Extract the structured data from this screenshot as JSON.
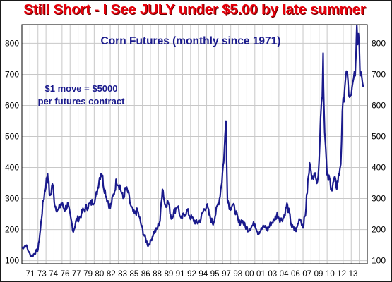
{
  "chart_data": {
    "type": "line",
    "title": "Corn Futures (monthly since 1971)",
    "headline": "Still Short - I See JULY under $5.00 by late summer",
    "annotation": [
      "$1 move = $5000",
      "per futures contract"
    ],
    "xlabel": "",
    "ylabel": "",
    "ylim": [
      90,
      860
    ],
    "xlim": [
      1971,
      2014
    ],
    "y_ticks": [
      100,
      200,
      300,
      400,
      500,
      600,
      700,
      800
    ],
    "x_tick_labels": [
      "71",
      "73",
      "74",
      "76",
      "77",
      "79",
      "80",
      "82",
      "83",
      "85",
      "86",
      "88",
      "89",
      "91",
      "92",
      "94",
      "95",
      "97",
      "98",
      "00",
      "01",
      "03",
      "04",
      "06",
      "07",
      "09",
      "10",
      "12",
      "13"
    ],
    "grid": true,
    "line_color": "#1a1a8c",
    "series": [
      {
        "x": [
          1971.0,
          1971.5,
          1972.0,
          1972.3,
          1972.6,
          1973.0,
          1973.3,
          1973.6,
          1973.9,
          1974.2,
          1974.5,
          1974.8,
          1975.1,
          1975.5,
          1975.9,
          1976.3,
          1976.7,
          1977.0,
          1977.4,
          1977.8,
          1978.2,
          1978.6,
          1979.0,
          1979.4,
          1979.8,
          1980.2,
          1980.6,
          1980.9,
          1981.2,
          1981.6,
          1982.0,
          1982.4,
          1982.8,
          1983.2,
          1983.6,
          1983.9,
          1984.2,
          1984.6,
          1985.0,
          1985.4,
          1985.8,
          1986.1,
          1986.4,
          1986.7,
          1987.0,
          1987.4,
          1987.8,
          1988.2,
          1988.5,
          1988.8,
          1989.2,
          1989.6,
          1990.0,
          1990.4,
          1990.8,
          1991.2,
          1991.6,
          1992.0,
          1992.4,
          1992.8,
          1993.2,
          1993.6,
          1994.0,
          1994.4,
          1994.8,
          1995.2,
          1995.6,
          1995.9,
          1996.2,
          1996.4,
          1996.6,
          1996.9,
          1997.2,
          1997.6,
          1998.0,
          1998.4,
          1998.8,
          1999.2,
          1999.6,
          2000.0,
          2000.4,
          2000.8,
          2001.2,
          2001.6,
          2002.0,
          2002.4,
          2002.8,
          2003.2,
          2003.6,
          2004.0,
          2004.3,
          2004.6,
          2004.9,
          2005.2,
          2005.6,
          2006.0,
          2006.3,
          2006.6,
          2006.9,
          2007.1,
          2007.3,
          2007.5,
          2007.8,
          2008.0,
          2008.2,
          2008.4,
          2008.5,
          2008.6,
          2008.8,
          2009.0,
          2009.3,
          2009.6,
          2009.9,
          2010.2,
          2010.5,
          2010.7,
          2010.9,
          2011.1,
          2011.3,
          2011.5,
          2011.7,
          2011.9,
          2012.1,
          2012.3,
          2012.5,
          2012.6,
          2012.7,
          2012.9,
          2013.1,
          2013.3,
          2013.5
        ],
        "values": [
          140,
          150,
          120,
          115,
          125,
          135,
          200,
          280,
          330,
          385,
          300,
          350,
          280,
          260,
          285,
          265,
          280,
          245,
          195,
          230,
          240,
          260,
          270,
          280,
          290,
          300,
          360,
          390,
          340,
          300,
          270,
          310,
          360,
          340,
          300,
          330,
          320,
          270,
          250,
          260,
          220,
          190,
          170,
          150,
          160,
          190,
          200,
          230,
          340,
          280,
          290,
          240,
          260,
          280,
          230,
          250,
          260,
          240,
          230,
          220,
          230,
          260,
          280,
          240,
          220,
          260,
          300,
          360,
          450,
          550,
          300,
          270,
          280,
          260,
          220,
          230,
          210,
          200,
          210,
          220,
          190,
          200,
          210,
          200,
          220,
          230,
          250,
          230,
          240,
          280,
          250,
          210,
          200,
          200,
          240,
          210,
          250,
          350,
          420,
          380,
          350,
          400,
          340,
          440,
          560,
          650,
          770,
          600,
          470,
          370,
          360,
          330,
          360,
          340,
          380,
          420,
          560,
          640,
          700,
          680,
          650,
          620,
          640,
          700,
          680,
          750,
          850,
          810,
          720,
          700,
          660
        ]
      }
    ]
  }
}
